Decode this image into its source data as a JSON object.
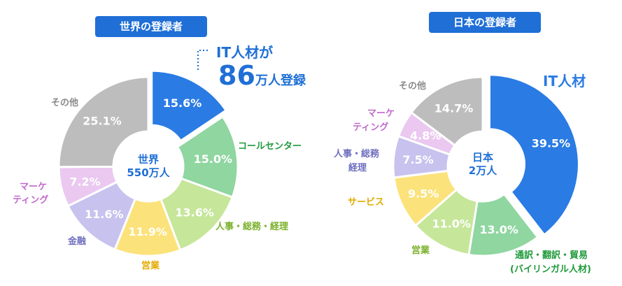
{
  "colors": {
    "title_bg": "#1f6fd6",
    "title_text": "#ffffff",
    "center_text": "#1f6fd6",
    "highlight_text": "#1f6fd6"
  },
  "world": {
    "title": "世界の登録者",
    "center_line1": "世界",
    "center_line2": "550万人",
    "highlight_line1": "IT人材が",
    "highlight_number": "86",
    "highlight_suffix": "万人登録"
  },
  "japan": {
    "title": "日本の登録者",
    "center_line1": "日本",
    "center_line2": "2万人"
  },
  "chart_data": [
    {
      "type": "pie",
      "title": "世界の登録者",
      "center_label": [
        "世界",
        "550万人"
      ],
      "categories": [
        "IT人材",
        "コールセンター",
        "人事・総務・経理",
        "営業",
        "金融",
        "マーケティング",
        "その他"
      ],
      "values": [
        15.6,
        15.0,
        13.6,
        11.9,
        11.6,
        7.2,
        25.1
      ],
      "value_labels": [
        "15.6%",
        "15.0%",
        "13.6%",
        "11.9%",
        "11.6%",
        "7.2%",
        "25.1%"
      ],
      "colors": [
        "#2a7be4",
        "#8fd6a0",
        "#c6e69a",
        "#fbe27a",
        "#c7c2ee",
        "#eac8f0",
        "#bdbdbd"
      ],
      "label_colors": [
        "#2a7be4",
        "#1e9a3a",
        "#7ab12a",
        "#e3ab00",
        "#6f6fbf",
        "#c06acb",
        "#8a8a8a"
      ],
      "exploded": [
        "IT人材"
      ]
    },
    {
      "type": "pie",
      "title": "日本の登録者",
      "center_label": [
        "日本",
        "2万人"
      ],
      "categories": [
        "IT人材",
        "通訳・翻訳・貿易(バイリンガル人材)",
        "営業",
        "サービス",
        "人事・総務経理",
        "マーケティング",
        "その他"
      ],
      "values": [
        39.5,
        13.0,
        11.0,
        9.5,
        7.5,
        4.8,
        14.7
      ],
      "value_labels": [
        "39.5%",
        "13.0%",
        "11.0%",
        "9.5%",
        "7.5%",
        "4.8%",
        "14.7%"
      ],
      "colors": [
        "#2a7be4",
        "#8fd6a0",
        "#c6e69a",
        "#fbe27a",
        "#c7c2ee",
        "#eac8f0",
        "#bdbdbd"
      ],
      "label_colors": [
        "#2a7be4",
        "#1e9a3a",
        "#7ab12a",
        "#e3ab00",
        "#6f6fbf",
        "#c06acb",
        "#8a8a8a"
      ],
      "exploded": [
        "IT人材"
      ]
    }
  ],
  "external_labels": {
    "world": {
      "it": "",
      "call": "コールセンター",
      "hr": "人事・総務・経理",
      "sales": "営業",
      "finance": "金融",
      "marketing_line1": "マーケ",
      "marketing_line2": "ティング",
      "other": "その他"
    },
    "japan": {
      "it": "IT人材",
      "trans_line1": "通訳・翻訳・貿易",
      "trans_line2": "(バイリンガル人材)",
      "sales": "営業",
      "service": "サービス",
      "hr_line1": "人事・総務",
      "hr_line2": "経理",
      "marketing_line1": "マーケ",
      "marketing_line2": "ティング",
      "other": "その他"
    }
  }
}
